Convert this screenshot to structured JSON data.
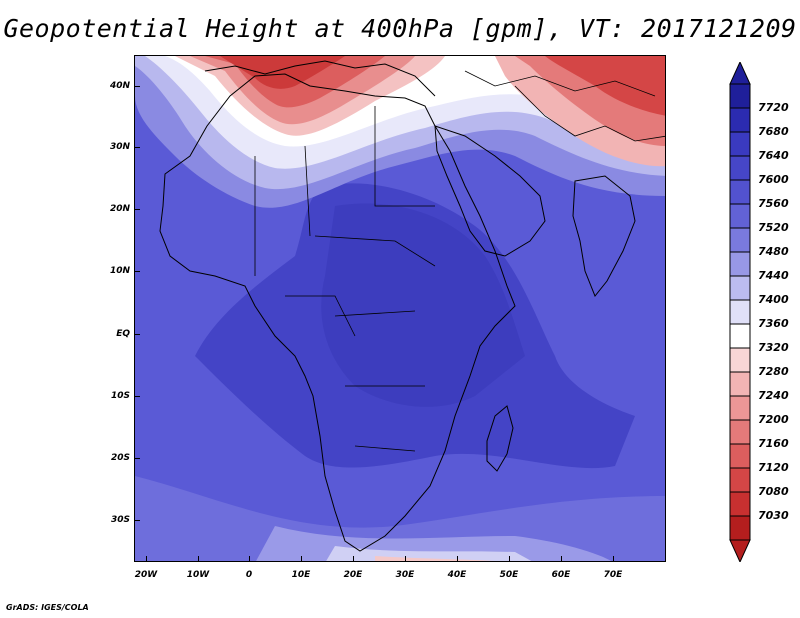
{
  "title": "Geopotential Height at 400hPa [gpm], VT: 2017121209",
  "credit": "GrADS: IGES/COLA",
  "map": {
    "lat_labels": [
      "40N",
      "30N",
      "20N",
      "10N",
      "EQ",
      "10S",
      "20S",
      "30S"
    ],
    "lon_labels": [
      "20W",
      "10W",
      "0",
      "10E",
      "20E",
      "30E",
      "40E",
      "50E",
      "60E",
      "70E"
    ]
  },
  "colorbar": {
    "levels": [
      "7720",
      "7680",
      "7640",
      "7600",
      "7560",
      "7520",
      "7480",
      "7440",
      "7400",
      "7360",
      "7320",
      "7280",
      "7240",
      "7200",
      "7160",
      "7120",
      "7080",
      "7030"
    ],
    "colors": [
      "#1f1f9a",
      "#2b2bb0",
      "#3a3ac0",
      "#4646c8",
      "#5252cf",
      "#6262d6",
      "#7a7ade",
      "#9898e6",
      "#bcbcf0",
      "#e0e0f8",
      "#ffffff",
      "#f8d6d6",
      "#f2b4b4",
      "#ec9696",
      "#e47a7a",
      "#dc5e5e",
      "#d44646",
      "#c83030",
      "#b41e1e"
    ]
  }
}
